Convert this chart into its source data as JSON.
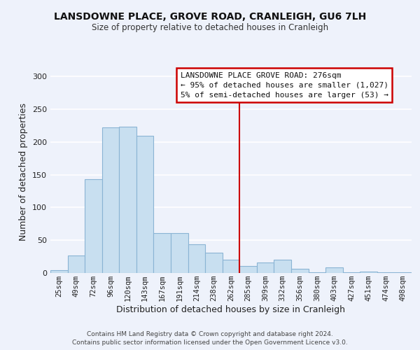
{
  "title": "LANSDOWNE PLACE, GROVE ROAD, CRANLEIGH, GU6 7LH",
  "subtitle": "Size of property relative to detached houses in Cranleigh",
  "xlabel": "Distribution of detached houses by size in Cranleigh",
  "ylabel": "Number of detached properties",
  "footer_line1": "Contains HM Land Registry data © Crown copyright and database right 2024.",
  "footer_line2": "Contains public sector information licensed under the Open Government Licence v3.0.",
  "bar_labels": [
    "25sqm",
    "49sqm",
    "72sqm",
    "96sqm",
    "120sqm",
    "143sqm",
    "167sqm",
    "191sqm",
    "214sqm",
    "238sqm",
    "262sqm",
    "285sqm",
    "309sqm",
    "332sqm",
    "356sqm",
    "380sqm",
    "403sqm",
    "427sqm",
    "451sqm",
    "474sqm",
    "498sqm"
  ],
  "bar_values": [
    4,
    27,
    143,
    222,
    223,
    210,
    61,
    61,
    44,
    31,
    20,
    11,
    16,
    20,
    6,
    1,
    9,
    1,
    2,
    1,
    1
  ],
  "bar_color": "#c8dff0",
  "bar_edge_color": "#8ab4d4",
  "annotation_title": "LANSDOWNE PLACE GROVE ROAD: 276sqm",
  "annotation_line1": "← 95% of detached houses are smaller (1,027)",
  "annotation_line2": "5% of semi-detached houses are larger (53) →",
  "vline_position": 10.5,
  "vline_color": "#cc0000",
  "ylim": [
    0,
    310
  ],
  "yticks": [
    0,
    50,
    100,
    150,
    200,
    250,
    300
  ],
  "background_color": "#eef2fb"
}
